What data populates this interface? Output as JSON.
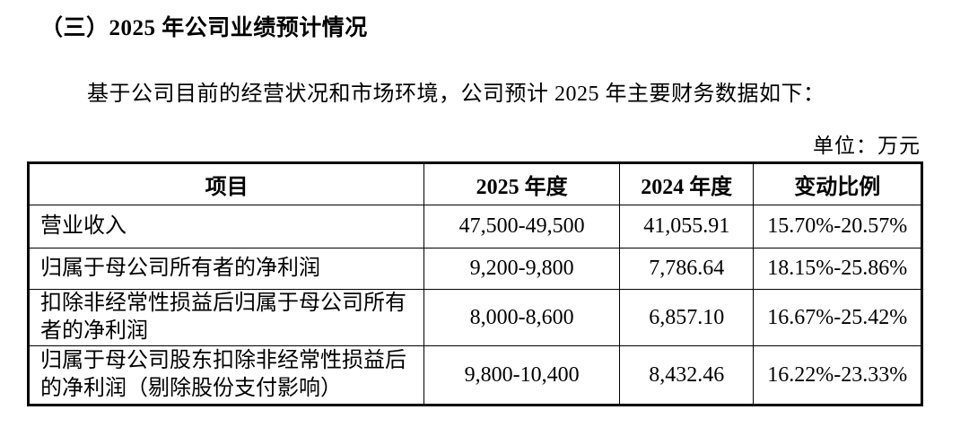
{
  "document": {
    "heading": "（三）2025 年公司业绩预计情况",
    "paragraph": "基于公司目前的经营状况和市场环境，公司预计 2025 年主要财务数据如下：",
    "unit_label": "单位：万元"
  },
  "table": {
    "headers": [
      "项目",
      "2025 年度",
      "2024 年度",
      "变动比例"
    ],
    "rows": [
      {
        "item": "营业收入",
        "y2025": "47,500-49,500",
        "y2024": "41,055.91",
        "change": "15.70%-20.57%"
      },
      {
        "item": "归属于母公司所有者的净利润",
        "y2025": "9,200-9,800",
        "y2024": "7,786.64",
        "change": "18.15%-25.86%"
      },
      {
        "item": "扣除非经常性损益后归属于母公司所有者的净利润",
        "y2025": "8,000-8,600",
        "y2024": "6,857.10",
        "change": "16.67%-25.42%"
      },
      {
        "item": "归属于母公司股东扣除非经常性损益后的净利润（剔除股份支付影响）",
        "y2025": "9,800-10,400",
        "y2024": "8,432.46",
        "change": "16.22%-23.33%"
      }
    ]
  }
}
